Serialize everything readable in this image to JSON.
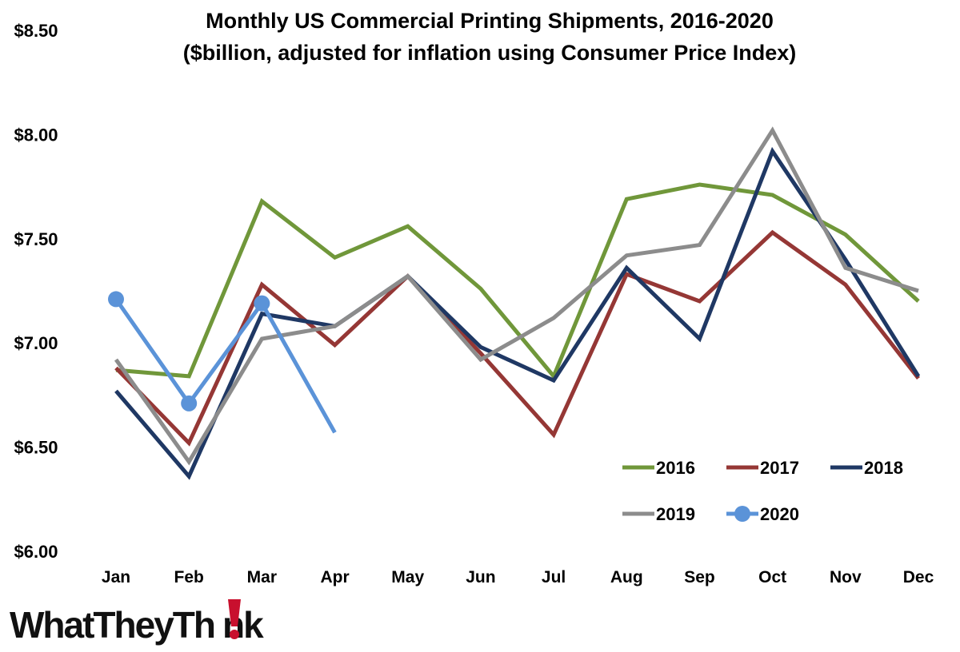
{
  "chart_data": {
    "type": "line",
    "title": "Monthly US Commercial Printing Shipments, 2016-2020",
    "subtitle": "($billion, adjusted for inflation using Consumer Price Index)",
    "categories": [
      "Jan",
      "Feb",
      "Mar",
      "Apr",
      "May",
      "Jun",
      "Jul",
      "Aug",
      "Sep",
      "Oct",
      "Nov",
      "Dec"
    ],
    "ylim": [
      6.0,
      8.5
    ],
    "yticks": [
      6.0,
      6.5,
      7.0,
      7.5,
      8.0,
      8.5
    ],
    "ytick_labels": [
      "$6.00",
      "$6.50",
      "$7.00",
      "$7.50",
      "$8.00",
      "$8.50"
    ],
    "grid": false,
    "legend_position": "bottom-right",
    "series": [
      {
        "name": "2016",
        "color": "#70973a",
        "markers": false,
        "values": [
          6.87,
          6.84,
          7.68,
          7.41,
          7.56,
          7.26,
          6.84,
          7.69,
          7.76,
          7.71,
          7.52,
          7.2
        ]
      },
      {
        "name": "2017",
        "color": "#953735",
        "markers": false,
        "values": [
          6.88,
          6.52,
          7.28,
          6.99,
          7.32,
          6.95,
          6.56,
          7.33,
          7.2,
          7.53,
          7.28,
          6.83
        ]
      },
      {
        "name": "2018",
        "color": "#1f3864",
        "markers": false,
        "values": [
          6.77,
          6.36,
          7.14,
          7.08,
          7.32,
          6.98,
          6.82,
          7.36,
          7.02,
          7.92,
          7.4,
          6.84
        ]
      },
      {
        "name": "2019",
        "color": "#8c8c8c",
        "markers": false,
        "values": [
          6.92,
          6.43,
          7.02,
          7.08,
          7.32,
          6.92,
          7.12,
          7.42,
          7.47,
          8.02,
          7.36,
          7.25
        ]
      },
      {
        "name": "2020",
        "color": "#5b93d8",
        "markers": true,
        "values": [
          7.21,
          6.71,
          7.19,
          6.57,
          null,
          null,
          null,
          null,
          null,
          null,
          null,
          null
        ]
      }
    ]
  },
  "logo": {
    "text_before": "WhatTheyTh",
    "text_after": "nk",
    "accent_color": "#c8102e"
  }
}
